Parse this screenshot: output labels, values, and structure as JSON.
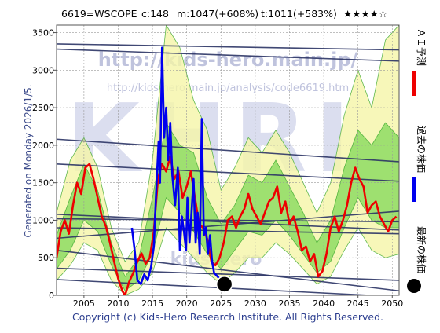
{
  "header": {
    "code": "6619=WSCOPE",
    "current": "c:148",
    "mid": "m:1047(+608%)",
    "top": "t:1011(+583%)",
    "stars": "★★★★☆"
  },
  "side_text": "Generated on Monday 2026/1/5.",
  "copyright": "Copyright (c) Kids-Hero Research Institute. All Rights Reserved.",
  "watermarks": {
    "url_main": "http://kids-hero.main.jp/",
    "url_analysis": "http://kids-hero.main.jp/analysis/code6619.htm",
    "center": "KHRI",
    "lower": "kids-hero"
  },
  "legend": {
    "ai_forecast": "ＡＩ予測",
    "past_price": "過去の株価",
    "latest_price": "最新の株価"
  },
  "colors": {
    "past_price": "#0000ee",
    "ai_forecast": "#ee0000",
    "latest_marker": "#000000",
    "band_outer": "#f5f5a8",
    "band_inner": "#66cc33",
    "band_light": "#c6eea0",
    "trend_line": "#2c3566",
    "watermark": "#b5b9d8",
    "copyright_text": "#2c3e8f",
    "side_text": "#3b4a8a"
  },
  "chart_data": {
    "type": "line",
    "title": "",
    "xlabel": "",
    "ylabel": "",
    "xlim": [
      2001,
      2051
    ],
    "ylim": [
      0,
      3600
    ],
    "xticks": [
      2005,
      2010,
      2015,
      2020,
      2025,
      2030,
      2035,
      2040,
      2045,
      2050
    ],
    "yticks": [
      0,
      500,
      1000,
      1500,
      2000,
      2500,
      3000,
      3500
    ],
    "grid": true,
    "legend_position": "right-vertical",
    "series": [
      {
        "id": "past_price",
        "points": [
          [
            2012.0,
            900
          ],
          [
            2012.4,
            600
          ],
          [
            2012.8,
            200
          ],
          [
            2013.3,
            150
          ],
          [
            2013.8,
            280
          ],
          [
            2014.3,
            200
          ],
          [
            2014.8,
            380
          ],
          [
            2015.2,
            650
          ],
          [
            2015.5,
            1300
          ],
          [
            2015.9,
            2050
          ],
          [
            2016.1,
            1500
          ],
          [
            2016.4,
            3300
          ],
          [
            2016.7,
            2100
          ],
          [
            2017.0,
            2500
          ],
          [
            2017.3,
            1800
          ],
          [
            2017.6,
            2300
          ],
          [
            2017.9,
            1600
          ],
          [
            2018.3,
            1200
          ],
          [
            2018.7,
            1700
          ],
          [
            2019.0,
            600
          ],
          [
            2019.3,
            1050
          ],
          [
            2019.6,
            850
          ],
          [
            2019.9,
            600
          ],
          [
            2020.1,
            1300
          ],
          [
            2020.4,
            700
          ],
          [
            2020.7,
            1100
          ],
          [
            2021.0,
            1550
          ],
          [
            2021.3,
            700
          ],
          [
            2021.6,
            1100
          ],
          [
            2021.9,
            550
          ],
          [
            2022.2,
            2350
          ],
          [
            2022.5,
            800
          ],
          [
            2022.8,
            900
          ],
          [
            2023.1,
            550
          ],
          [
            2023.4,
            800
          ],
          [
            2023.7,
            450
          ],
          [
            2024.0,
            300
          ],
          [
            2024.4,
            260
          ],
          [
            2024.8,
            220
          ],
          [
            2025.2,
            190
          ]
        ]
      },
      {
        "id": "ai_forecast",
        "points": [
          [
            2001.0,
            500
          ],
          [
            2001.6,
            850
          ],
          [
            2002.2,
            1000
          ],
          [
            2002.8,
            820
          ],
          [
            2003.4,
            1200
          ],
          [
            2004.0,
            1500
          ],
          [
            2004.6,
            1350
          ],
          [
            2005.2,
            1700
          ],
          [
            2005.8,
            1750
          ],
          [
            2006.4,
            1550
          ],
          [
            2007.0,
            1300
          ],
          [
            2007.6,
            1050
          ],
          [
            2008.2,
            920
          ],
          [
            2008.8,
            700
          ],
          [
            2009.4,
            450
          ],
          [
            2010.0,
            220
          ],
          [
            2010.6,
            60
          ],
          [
            2011.0,
            0
          ],
          [
            2011.6,
            180
          ],
          [
            2012.2,
            300
          ],
          [
            2012.8,
            450
          ],
          [
            2013.4,
            560
          ],
          [
            2014.0,
            420
          ],
          [
            2014.6,
            500
          ],
          [
            2015.2,
            850
          ],
          [
            2015.8,
            1550
          ],
          [
            2016.4,
            1750
          ],
          [
            2017.0,
            1650
          ],
          [
            2017.6,
            1850
          ],
          [
            2018.2,
            1550
          ],
          [
            2018.8,
            1650
          ],
          [
            2019.4,
            1300
          ],
          [
            2020.0,
            1450
          ],
          [
            2020.6,
            1650
          ],
          [
            2021.2,
            1300
          ],
          [
            2021.8,
            950
          ],
          [
            2022.4,
            900
          ],
          [
            2023.0,
            750
          ],
          [
            2023.6,
            450
          ],
          [
            2024.2,
            400
          ],
          [
            2024.8,
            500
          ],
          [
            2025.4,
            700
          ],
          [
            2026.0,
            1000
          ],
          [
            2026.6,
            1050
          ],
          [
            2027.2,
            900
          ],
          [
            2027.8,
            1050
          ],
          [
            2028.4,
            1150
          ],
          [
            2029.0,
            1350
          ],
          [
            2029.6,
            1150
          ],
          [
            2030.2,
            1050
          ],
          [
            2030.8,
            950
          ],
          [
            2031.4,
            1100
          ],
          [
            2032.0,
            1250
          ],
          [
            2032.6,
            1300
          ],
          [
            2033.2,
            1450
          ],
          [
            2033.8,
            1100
          ],
          [
            2034.4,
            1250
          ],
          [
            2035.0,
            950
          ],
          [
            2035.6,
            1050
          ],
          [
            2036.2,
            850
          ],
          [
            2036.8,
            600
          ],
          [
            2037.4,
            650
          ],
          [
            2038.0,
            450
          ],
          [
            2038.6,
            550
          ],
          [
            2039.2,
            250
          ],
          [
            2039.8,
            320
          ],
          [
            2040.4,
            550
          ],
          [
            2041.0,
            900
          ],
          [
            2041.6,
            1050
          ],
          [
            2042.2,
            850
          ],
          [
            2042.8,
            1000
          ],
          [
            2043.4,
            1200
          ],
          [
            2044.0,
            1500
          ],
          [
            2044.6,
            1700
          ],
          [
            2045.2,
            1550
          ],
          [
            2045.8,
            1450
          ],
          [
            2046.4,
            1100
          ],
          [
            2047.0,
            1200
          ],
          [
            2047.6,
            1250
          ],
          [
            2048.2,
            1050
          ],
          [
            2048.8,
            950
          ],
          [
            2049.4,
            850
          ],
          [
            2050.0,
            1000
          ],
          [
            2050.6,
            1050
          ]
        ]
      },
      {
        "id": "band_outer_upper",
        "points": [
          [
            2001,
            1100
          ],
          [
            2003,
            1800
          ],
          [
            2005,
            2100
          ],
          [
            2007,
            1700
          ],
          [
            2009,
            900
          ],
          [
            2011,
            450
          ],
          [
            2013,
            700
          ],
          [
            2015,
            1800
          ],
          [
            2017,
            3600
          ],
          [
            2019,
            3300
          ],
          [
            2021,
            2600
          ],
          [
            2023,
            2200
          ],
          [
            2025,
            1400
          ],
          [
            2027,
            1700
          ],
          [
            2029,
            2100
          ],
          [
            2031,
            1900
          ],
          [
            2033,
            2200
          ],
          [
            2035,
            1900
          ],
          [
            2037,
            1500
          ],
          [
            2039,
            1100
          ],
          [
            2041,
            1500
          ],
          [
            2043,
            2400
          ],
          [
            2045,
            3000
          ],
          [
            2047,
            2500
          ],
          [
            2049,
            3400
          ],
          [
            2051,
            3600
          ]
        ]
      },
      {
        "id": "band_outer_lower",
        "points": [
          [
            2001,
            200
          ],
          [
            2003,
            400
          ],
          [
            2005,
            700
          ],
          [
            2007,
            600
          ],
          [
            2009,
            200
          ],
          [
            2011,
            0
          ],
          [
            2013,
            80
          ],
          [
            2015,
            300
          ],
          [
            2017,
            900
          ],
          [
            2019,
            700
          ],
          [
            2021,
            500
          ],
          [
            2023,
            300
          ],
          [
            2025,
            150
          ],
          [
            2027,
            300
          ],
          [
            2029,
            500
          ],
          [
            2031,
            500
          ],
          [
            2033,
            700
          ],
          [
            2035,
            550
          ],
          [
            2037,
            350
          ],
          [
            2039,
            150
          ],
          [
            2041,
            250
          ],
          [
            2043,
            600
          ],
          [
            2045,
            900
          ],
          [
            2047,
            600
          ],
          [
            2049,
            500
          ],
          [
            2051,
            550
          ]
        ]
      },
      {
        "id": "band_inner_upper",
        "points": [
          [
            2001,
            800
          ],
          [
            2003,
            1300
          ],
          [
            2005,
            1750
          ],
          [
            2007,
            1400
          ],
          [
            2009,
            700
          ],
          [
            2011,
            250
          ],
          [
            2013,
            500
          ],
          [
            2015,
            1300
          ],
          [
            2017,
            2300
          ],
          [
            2019,
            2000
          ],
          [
            2021,
            1900
          ],
          [
            2023,
            1300
          ],
          [
            2025,
            950
          ],
          [
            2027,
            1200
          ],
          [
            2029,
            1600
          ],
          [
            2031,
            1500
          ],
          [
            2033,
            1800
          ],
          [
            2035,
            1450
          ],
          [
            2037,
            1100
          ],
          [
            2039,
            700
          ],
          [
            2041,
            1000
          ],
          [
            2043,
            1700
          ],
          [
            2045,
            2200
          ],
          [
            2047,
            2000
          ],
          [
            2049,
            2300
          ],
          [
            2051,
            2100
          ]
        ]
      },
      {
        "id": "band_inner_lower",
        "points": [
          [
            2001,
            350
          ],
          [
            2003,
            600
          ],
          [
            2005,
            1000
          ],
          [
            2007,
            850
          ],
          [
            2009,
            400
          ],
          [
            2011,
            60
          ],
          [
            2013,
            200
          ],
          [
            2015,
            550
          ],
          [
            2017,
            1300
          ],
          [
            2019,
            1100
          ],
          [
            2021,
            850
          ],
          [
            2023,
            550
          ],
          [
            2025,
            350
          ],
          [
            2027,
            600
          ],
          [
            2029,
            850
          ],
          [
            2031,
            800
          ],
          [
            2033,
            1000
          ],
          [
            2035,
            800
          ],
          [
            2037,
            550
          ],
          [
            2039,
            300
          ],
          [
            2041,
            450
          ],
          [
            2043,
            900
          ],
          [
            2045,
            1300
          ],
          [
            2047,
            1000
          ],
          [
            2049,
            900
          ],
          [
            2051,
            900
          ]
        ]
      }
    ],
    "trend_lines": [
      [
        [
          2001,
          3350
        ],
        [
          2051,
          3270
        ]
      ],
      [
        [
          2001,
          3280
        ],
        [
          2051,
          3120
        ]
      ],
      [
        [
          2001,
          2080
        ],
        [
          2051,
          1780
        ]
      ],
      [
        [
          2001,
          1750
        ],
        [
          2051,
          1520
        ]
      ],
      [
        [
          2001,
          1080
        ],
        [
          2051,
          870
        ]
      ],
      [
        [
          2001,
          1020
        ],
        [
          2051,
          980
        ]
      ],
      [
        [
          2001,
          900
        ],
        [
          2051,
          820
        ]
      ],
      [
        [
          2001,
          760
        ],
        [
          2051,
          1120
        ]
      ],
      [
        [
          2001,
          600
        ],
        [
          2051,
          60
        ]
      ],
      [
        [
          2001,
          360
        ],
        [
          2051,
          200
        ]
      ],
      [
        [
          2001,
          210
        ],
        [
          2051,
          -20
        ]
      ]
    ],
    "latest_marker": {
      "x": 2025.5,
      "y": 148
    }
  }
}
